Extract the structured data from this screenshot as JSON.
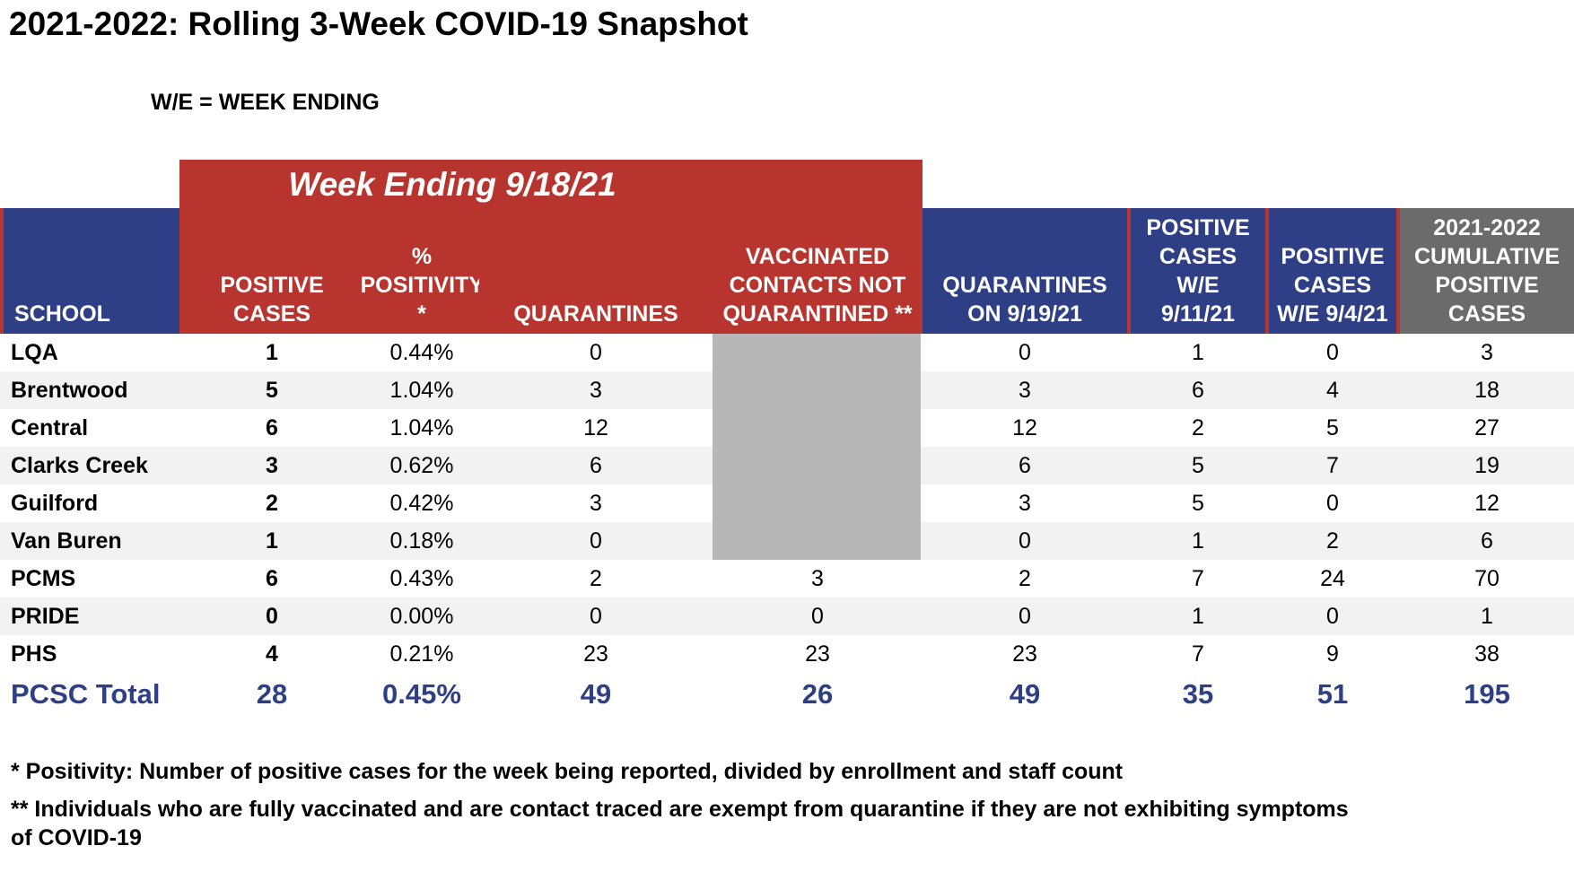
{
  "title": "2021-2022: Rolling 3-Week COVID-19 Snapshot",
  "subtitle": "W/E = WEEK ENDING",
  "week_banner": "Week Ending 9/18/21",
  "headers": {
    "school": "SCHOOL",
    "positive_cases": "POSITIVE CASES",
    "positivity": "% POSITIVITY *",
    "quarantines": "QUARANTINES",
    "vaccinated": "VACCINATED CONTACTS NOT QUARANTINED **",
    "quarantines_on": "QUARANTINES ON 9/19/21",
    "pos_911": "POSITIVE CASES W/E 9/11/21",
    "pos_94": "POSITIVE CASES W/E 9/4/21",
    "cumulative": "2021-2022 CUMULATIVE POSITIVE CASES"
  },
  "rows": [
    {
      "school": "LQA",
      "positive": "1",
      "positivity": "0.44%",
      "quarantines": "0",
      "vaccinated": "",
      "quar_on": "0",
      "pos_911": "1",
      "pos_94": "0",
      "cumulative": "3"
    },
    {
      "school": "Brentwood",
      "positive": "5",
      "positivity": "1.04%",
      "quarantines": "3",
      "vaccinated": "",
      "quar_on": "3",
      "pos_911": "6",
      "pos_94": "4",
      "cumulative": "18"
    },
    {
      "school": "Central",
      "positive": "6",
      "positivity": "1.04%",
      "quarantines": "12",
      "vaccinated": "",
      "quar_on": "12",
      "pos_911": "2",
      "pos_94": "5",
      "cumulative": "27"
    },
    {
      "school": "Clarks Creek",
      "positive": "3",
      "positivity": "0.62%",
      "quarantines": "6",
      "vaccinated": "",
      "quar_on": "6",
      "pos_911": "5",
      "pos_94": "7",
      "cumulative": "19"
    },
    {
      "school": "Guilford",
      "positive": "2",
      "positivity": "0.42%",
      "quarantines": "3",
      "vaccinated": "",
      "quar_on": "3",
      "pos_911": "5",
      "pos_94": "0",
      "cumulative": "12"
    },
    {
      "school": "Van Buren",
      "positive": "1",
      "positivity": "0.18%",
      "quarantines": "0",
      "vaccinated": "",
      "quar_on": "0",
      "pos_911": "1",
      "pos_94": "2",
      "cumulative": "6"
    },
    {
      "school": "PCMS",
      "positive": "6",
      "positivity": "0.43%",
      "quarantines": "2",
      "vaccinated": "3",
      "quar_on": "2",
      "pos_911": "7",
      "pos_94": "24",
      "cumulative": "70"
    },
    {
      "school": "PRIDE",
      "positive": "0",
      "positivity": "0.00%",
      "quarantines": "0",
      "vaccinated": "0",
      "quar_on": "0",
      "pos_911": "1",
      "pos_94": "0",
      "cumulative": "1"
    },
    {
      "school": "PHS",
      "positive": "4",
      "positivity": "0.21%",
      "quarantines": "23",
      "vaccinated": "23",
      "quar_on": "23",
      "pos_911": "7",
      "pos_94": "9",
      "cumulative": "38"
    }
  ],
  "total": {
    "school": "PCSC Total",
    "positive": "28",
    "positivity": "0.45%",
    "quarantines": "49",
    "vaccinated": "26",
    "quar_on": "49",
    "pos_911": "35",
    "pos_94": "51",
    "cumulative": "195"
  },
  "notes": [
    "* Positivity: Number of positive cases for the week being reported, divided by enrollment and staff count",
    "** Individuals who are fully vaccinated and are contact traced are exempt from quarantine if they are not exhibiting symptoms of COVID-19"
  ],
  "colors": {
    "red": "#b7352e",
    "blue": "#2f3f85",
    "gray": "#6b6b6b",
    "total_text": "#2f3f85"
  }
}
